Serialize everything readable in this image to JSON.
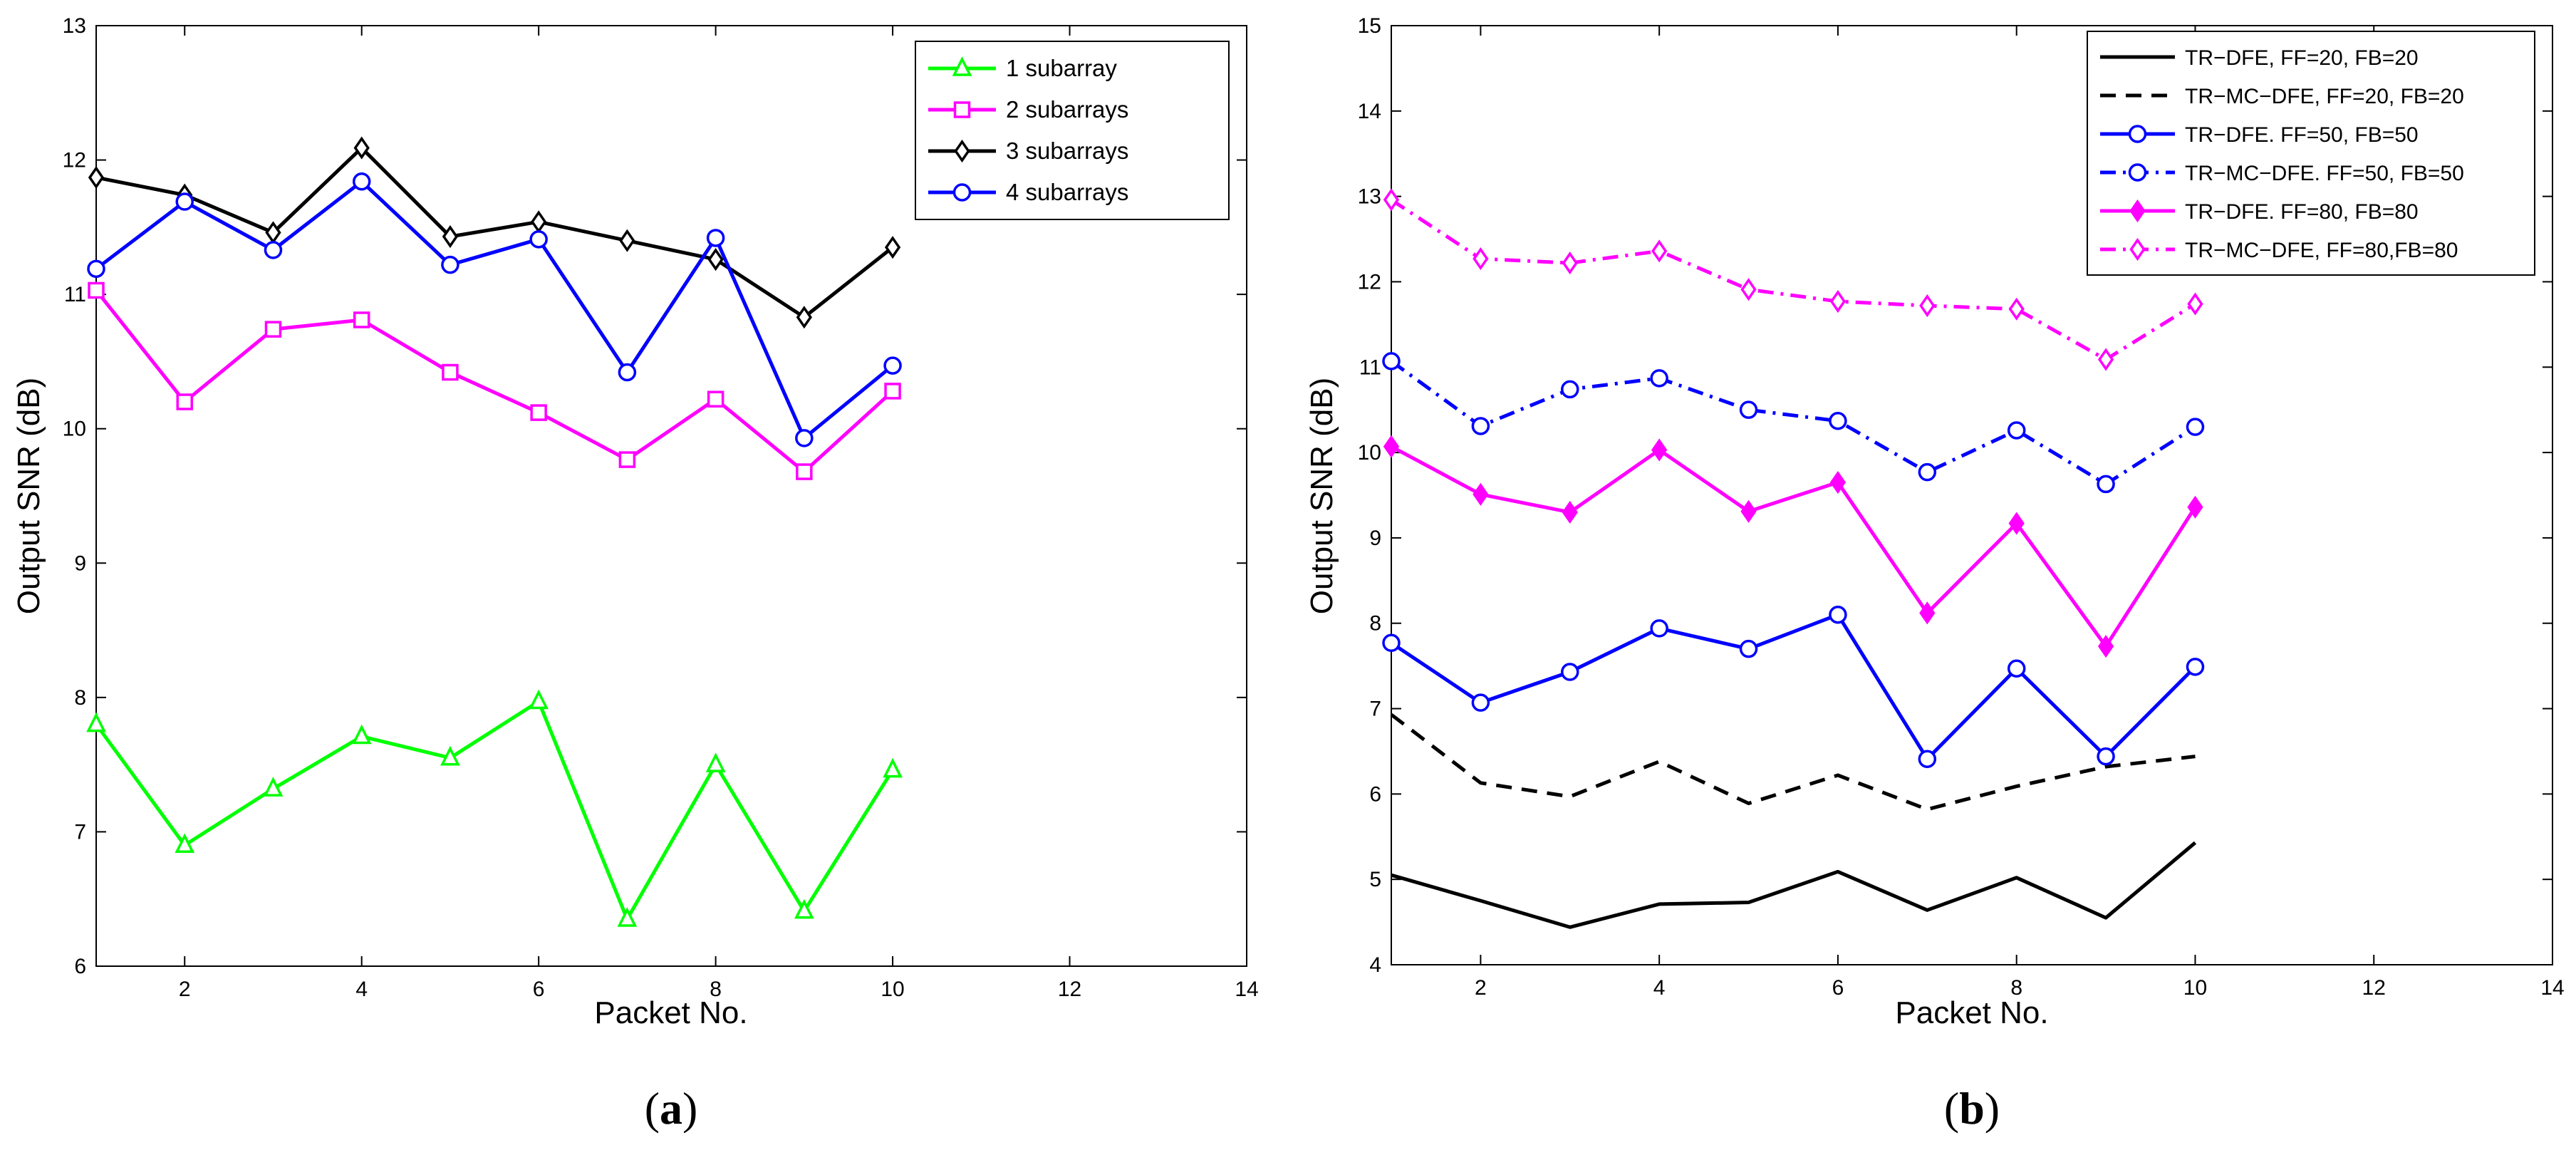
{
  "figure": {
    "captions": {
      "a": {
        "open": "(",
        "letter": "a",
        "close": ")"
      },
      "b": {
        "open": "(",
        "letter": "b",
        "close": ")"
      }
    }
  },
  "chart_data": [
    {
      "type": "line",
      "panel": "a",
      "title": "",
      "xlabel": "Packet No.",
      "ylabel": "Output SNR (dB)",
      "xlim": [
        1,
        14
      ],
      "ylim": [
        6,
        13
      ],
      "xticks": [
        2,
        4,
        6,
        8,
        10,
        12,
        14
      ],
      "yticks": [
        6,
        7,
        8,
        9,
        10,
        11,
        12,
        13
      ],
      "grid": false,
      "legend_position": "top-right",
      "x": [
        1,
        2,
        3,
        4,
        5,
        6,
        7,
        8,
        9,
        10
      ],
      "series": [
        {
          "name": "1 subarray",
          "color": "#00ff00",
          "dash": "solid",
          "marker": "triangle",
          "values": [
            7.8,
            6.9,
            7.32,
            7.71,
            7.55,
            7.97,
            6.35,
            7.5,
            6.41,
            7.46
          ]
        },
        {
          "name": "2 subarrays",
          "color": "#ff00ff",
          "dash": "solid",
          "marker": "square",
          "values": [
            11.03,
            10.2,
            10.74,
            10.81,
            10.42,
            10.12,
            9.77,
            10.22,
            9.68,
            10.28
          ]
        },
        {
          "name": "3 subarrays",
          "color": "#000000",
          "dash": "solid",
          "marker": "diamond",
          "values": [
            11.87,
            11.74,
            11.46,
            12.09,
            11.43,
            11.54,
            11.4,
            11.26,
            10.83,
            11.35
          ]
        },
        {
          "name": "4 subarrays",
          "color": "#0000ff",
          "dash": "solid",
          "marker": "circle",
          "values": [
            11.19,
            11.69,
            11.33,
            11.84,
            11.22,
            11.41,
            10.42,
            11.42,
            9.93,
            10.47
          ]
        }
      ]
    },
    {
      "type": "line",
      "panel": "b",
      "title": "",
      "xlabel": "Packet No.",
      "ylabel": "Output SNR (dB)",
      "xlim": [
        1,
        14
      ],
      "ylim": [
        4,
        15
      ],
      "xticks": [
        2,
        4,
        6,
        8,
        10,
        12,
        14
      ],
      "yticks": [
        4,
        5,
        6,
        7,
        8,
        9,
        10,
        11,
        12,
        13,
        14,
        15
      ],
      "grid": false,
      "legend_position": "top-right",
      "x": [
        1,
        2,
        3,
        4,
        5,
        6,
        7,
        8,
        9,
        10
      ],
      "series": [
        {
          "name": "TR−DFE, FF=20, FB=20",
          "color": "#000000",
          "dash": "solid",
          "marker": "none",
          "values": [
            5.05,
            4.75,
            4.44,
            4.71,
            4.73,
            5.09,
            4.64,
            5.02,
            4.55,
            5.43
          ]
        },
        {
          "name": "TR−MC−DFE, FF=20, FB=20",
          "color": "#000000",
          "dash": "dashed",
          "marker": "none",
          "values": [
            6.93,
            6.13,
            5.97,
            6.38,
            5.89,
            6.22,
            5.82,
            6.09,
            6.32,
            6.44
          ]
        },
        {
          "name": "TR−DFE. FF=50, FB=50",
          "color": "#0000ff",
          "dash": "solid",
          "marker": "circle",
          "values": [
            7.77,
            7.07,
            7.43,
            7.94,
            7.7,
            8.1,
            6.41,
            7.47,
            6.44,
            7.49
          ]
        },
        {
          "name": "TR−MC−DFE. FF=50, FB=50",
          "color": "#0000ff",
          "dash": "dashdot",
          "marker": "circle",
          "values": [
            11.07,
            10.31,
            10.74,
            10.87,
            10.5,
            10.37,
            9.77,
            10.26,
            9.63,
            10.3
          ]
        },
        {
          "name": "TR−DFE. FF=80, FB=80",
          "color": "#ff00ff",
          "dash": "solid",
          "marker": "filled-diamond",
          "values": [
            10.07,
            9.51,
            9.3,
            10.03,
            9.31,
            9.65,
            8.12,
            9.17,
            7.73,
            9.36
          ]
        },
        {
          "name": "TR−MC−DFE, FF=80,FB=80",
          "color": "#ff00ff",
          "dash": "dashdot",
          "marker": "diamond",
          "values": [
            12.96,
            12.27,
            12.22,
            12.36,
            11.91,
            11.77,
            11.72,
            11.68,
            11.09,
            11.74
          ]
        }
      ]
    }
  ]
}
